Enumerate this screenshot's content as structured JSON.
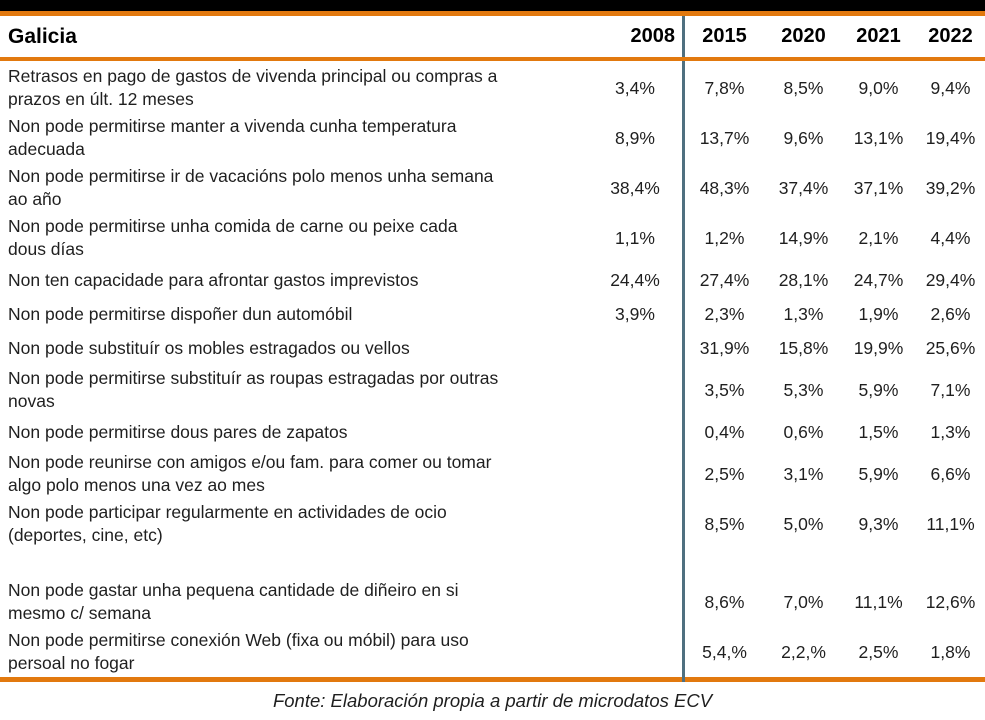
{
  "colors": {
    "accent_orange": "#E2790E",
    "divider_blue_gray": "#4F7080",
    "top_bar_black": "#000000"
  },
  "table": {
    "corner_label": "Galicia",
    "years": [
      "2008",
      "2015",
      "2020",
      "2021",
      "2022"
    ],
    "rows": [
      {
        "label": "Retrasos en pago de gastos de vivenda principal ou compras a\nprazos en últ. 12 meses",
        "values": [
          "3,4%",
          "7,8%",
          "8,5%",
          "9,0%",
          "9,4%"
        ]
      },
      {
        "label": "Non pode permitirse manter a vivenda cunha temperatura\nadecuada",
        "values": [
          "8,9%",
          "13,7%",
          "9,6%",
          "13,1%",
          "19,4%"
        ]
      },
      {
        "label": "Non pode permitirse ir de vacacións polo menos unha semana\nao año",
        "values": [
          "38,4%",
          "48,3%",
          "37,4%",
          "37,1%",
          "39,2%"
        ]
      },
      {
        "label": "Non pode permitirse unha comida de carne ou peixe cada\ndous días",
        "values": [
          "1,1%",
          "1,2%",
          "14,9%",
          "2,1%",
          "4,4%"
        ]
      },
      {
        "label": "Non ten capacidade para afrontar gastos imprevistos",
        "values": [
          "24,4%",
          "27,4%",
          "28,1%",
          "24,7%",
          "29,4%"
        ]
      },
      {
        "label": "Non pode permitirse dispoñer dun automóbil",
        "values": [
          "3,9%",
          "2,3%",
          "1,3%",
          "1,9%",
          "2,6%"
        ]
      },
      {
        "label": "Non pode substituír os mobles estragados ou vellos",
        "values": [
          "",
          "31,9%",
          "15,8%",
          "19,9%",
          "25,6%"
        ]
      },
      {
        "label": "Non pode permitirse substituír as roupas estragadas por outras\nnovas",
        "values": [
          "",
          "3,5%",
          "5,3%",
          "5,9%",
          "7,1%"
        ]
      },
      {
        "label": "Non pode permitirse dous pares de zapatos",
        "values": [
          "",
          "0,4%",
          "0,6%",
          "1,5%",
          "1,3%"
        ]
      },
      {
        "label": "Non pode reunirse con amigos e/ou fam. para comer ou tomar\nalgo polo menos una vez ao mes",
        "values": [
          "",
          "2,5%",
          "3,1%",
          "5,9%",
          "6,6%"
        ]
      },
      {
        "label": "Non pode participar regularmente en actividades de ocio\n(deportes, cine, etc)",
        "values": [
          "",
          "8,5%",
          "5,0%",
          "9,3%",
          "11,1%"
        ],
        "spacer_after": true
      },
      {
        "label": "Non pode gastar unha pequena cantidade de diñeiro en si\nmesmo c/ semana",
        "values": [
          "",
          "8,6%",
          "7,0%",
          "11,1%",
          "12,6%"
        ]
      },
      {
        "label": "Non pode permitirse conexión Web (fixa ou móbil) para uso\npersoal no fogar",
        "values": [
          "",
          "5,4,%",
          "2,2,%",
          "2,5%",
          "1,8%"
        ]
      }
    ]
  },
  "caption": "Fonte: Elaboración propia a partir de microdatos ECV"
}
